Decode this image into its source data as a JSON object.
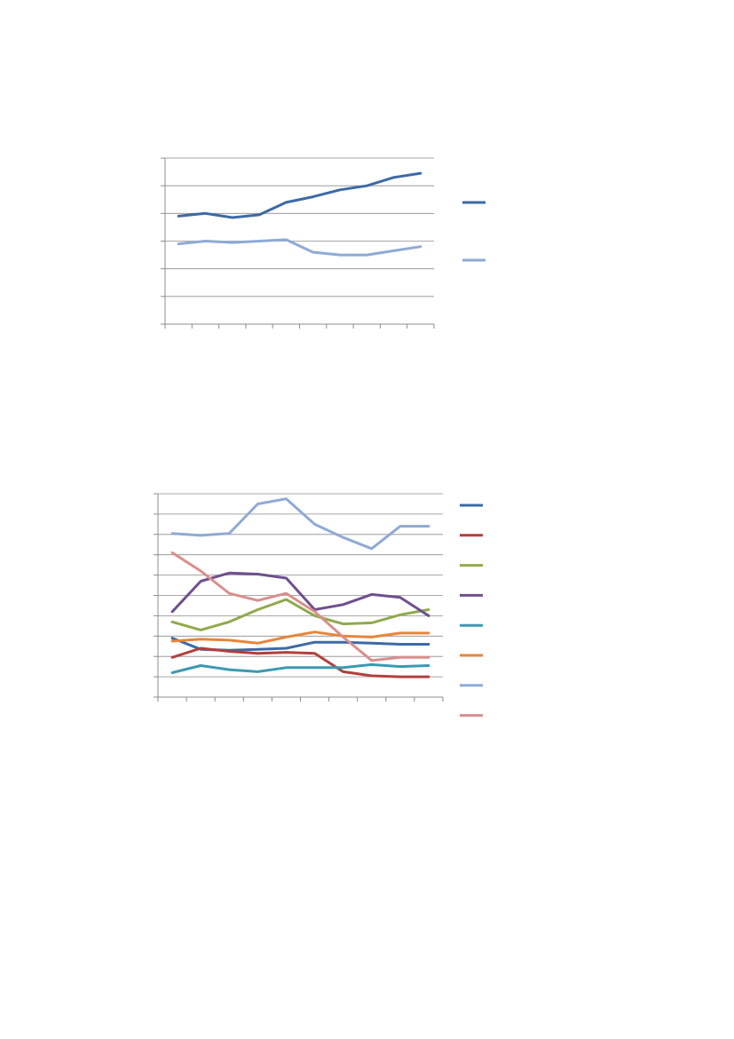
{
  "chart_data": [
    {
      "type": "line",
      "title": "",
      "xlabel": "",
      "ylabel": "",
      "x": [
        1,
        2,
        3,
        4,
        5,
        6,
        7,
        8,
        9,
        10
      ],
      "ylim": [
        0,
        6
      ],
      "grid": true,
      "legend": "right",
      "series": [
        {
          "color": "#3c6aa5",
          "values": [
            3.9,
            4.0,
            3.85,
            3.95,
            4.4,
            4.6,
            4.85,
            5.0,
            5.3,
            5.45
          ]
        },
        {
          "color": "#8eaad6",
          "values": [
            2.9,
            3.0,
            2.95,
            3.0,
            3.05,
            2.6,
            2.5,
            2.5,
            2.65,
            2.8
          ]
        }
      ]
    },
    {
      "type": "line",
      "title": "",
      "xlabel": "",
      "ylabel": "",
      "x": [
        1,
        2,
        3,
        4,
        5,
        6,
        7,
        8,
        9,
        10
      ],
      "ylim": [
        0,
        10
      ],
      "grid": true,
      "legend": "right",
      "series": [
        {
          "color": "#3c6aa5",
          "values": [
            2.9,
            2.35,
            2.3,
            2.35,
            2.4,
            2.7,
            2.7,
            2.65,
            2.6,
            2.6
          ]
        },
        {
          "color": "#b23f3c",
          "values": [
            1.95,
            2.4,
            2.25,
            2.15,
            2.2,
            2.15,
            1.25,
            1.05,
            1.0,
            1.0
          ]
        },
        {
          "color": "#8faa4c",
          "values": [
            3.7,
            3.3,
            3.7,
            4.3,
            4.8,
            4.0,
            3.6,
            3.65,
            4.05,
            4.3
          ]
        },
        {
          "color": "#6f4f8f",
          "values": [
            4.2,
            5.7,
            6.1,
            6.05,
            5.85,
            4.3,
            4.55,
            5.05,
            4.9,
            4.0
          ]
        },
        {
          "color": "#3a9ab1",
          "values": [
            1.2,
            1.55,
            1.35,
            1.25,
            1.45,
            1.45,
            1.45,
            1.6,
            1.5,
            1.55
          ]
        },
        {
          "color": "#e6863b",
          "values": [
            2.75,
            2.85,
            2.8,
            2.65,
            2.95,
            3.2,
            3.0,
            2.95,
            3.15,
            3.15
          ]
        },
        {
          "color": "#8eaad6",
          "values": [
            8.05,
            7.95,
            8.05,
            9.5,
            9.75,
            8.5,
            7.85,
            7.3,
            8.4,
            8.4
          ]
        },
        {
          "color": "#d88f8d",
          "values": [
            7.1,
            6.2,
            5.1,
            4.75,
            5.1,
            4.2,
            2.95,
            1.8,
            1.95,
            1.95
          ]
        }
      ]
    }
  ]
}
